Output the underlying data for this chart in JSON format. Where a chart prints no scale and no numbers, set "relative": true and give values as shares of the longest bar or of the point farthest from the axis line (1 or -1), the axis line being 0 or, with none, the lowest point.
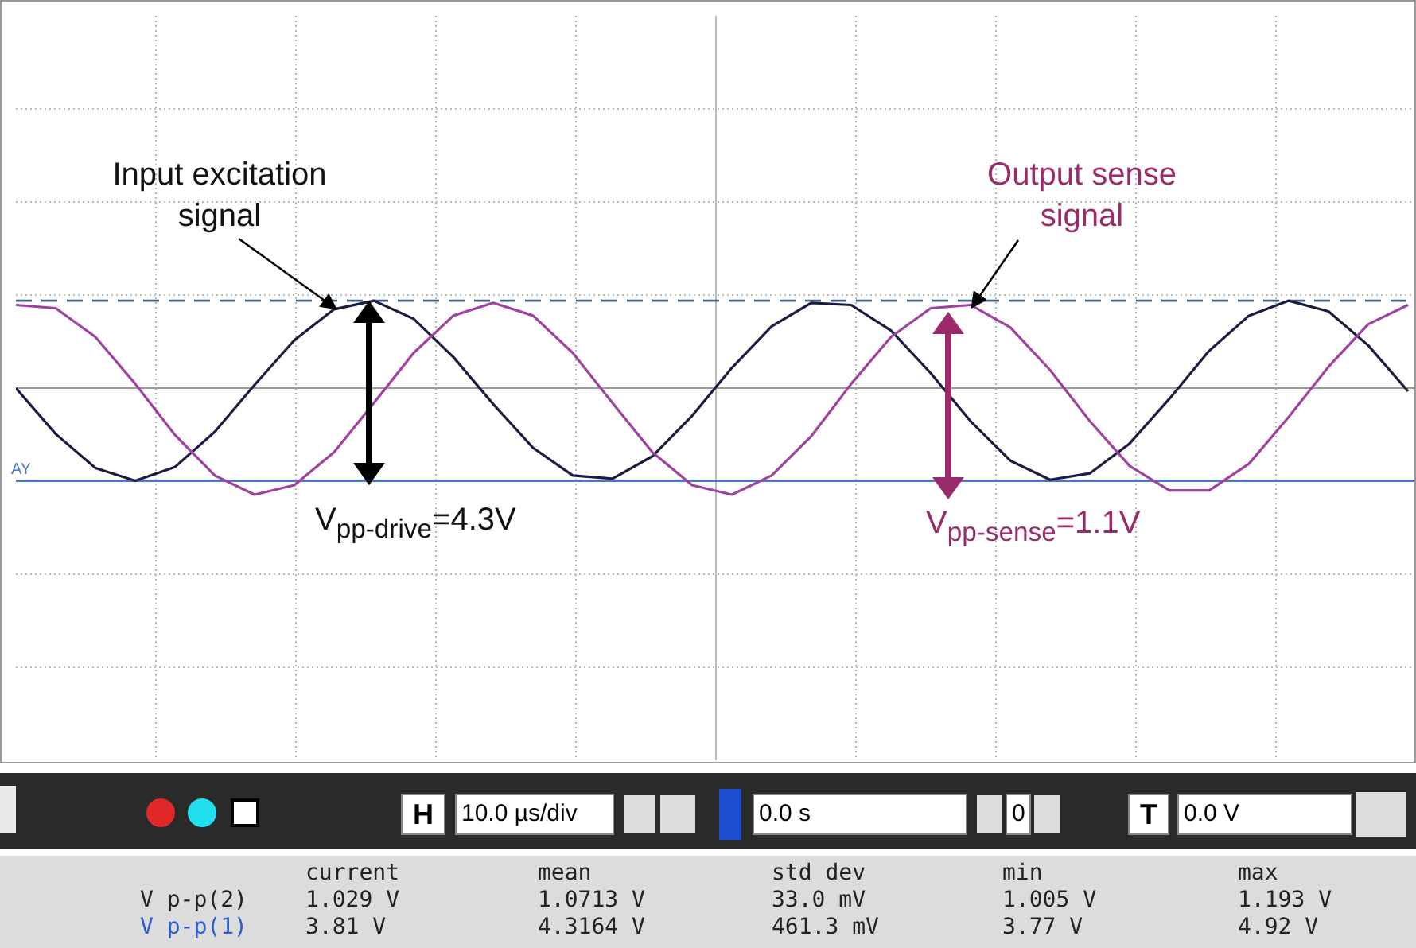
{
  "chart_data": {
    "type": "line",
    "relative": true,
    "categories": [
      null,
      null,
      null,
      null,
      null,
      null,
      null,
      null,
      null,
      null,
      null,
      null,
      null,
      null,
      null,
      null,
      null,
      null,
      null,
      null,
      null,
      null,
      null,
      null,
      null,
      null,
      null,
      null,
      null,
      null,
      null,
      null,
      null,
      null,
      null,
      null
    ],
    "series": [
      {
        "color": "#1c1c40",
        "values": [
          0.0,
          -0.43,
          -0.75,
          -0.87,
          -0.74,
          -0.41,
          0.03,
          0.45,
          0.74,
          0.82,
          0.65,
          0.29,
          -0.15,
          -0.56,
          -0.82,
          -0.85,
          -0.64,
          -0.26,
          0.19,
          0.58,
          0.8,
          0.78,
          0.54,
          0.14,
          -0.31,
          -0.68,
          -0.86,
          -0.8,
          -0.52,
          -0.1,
          0.35,
          0.68,
          0.82,
          0.72,
          0.4,
          -0.03
        ]
      },
      {
        "color": "#a040a0",
        "values": [
          0.78,
          0.75,
          0.48,
          0.04,
          -0.44,
          -0.82,
          -1,
          -0.91,
          -0.6,
          -0.14,
          0.33,
          0.68,
          0.8,
          0.68,
          0.33,
          -0.14,
          -0.6,
          -0.91,
          -1,
          -0.82,
          -0.45,
          0.04,
          0.48,
          0.75,
          0.78,
          0.57,
          0.17,
          -0.31,
          -0.73,
          -0.96,
          -0.96,
          -0.71,
          -0.27,
          0.2,
          0.6,
          0.78
        ]
      }
    ],
    "ref_lines": [
      {
        "axis": "y",
        "value": 0.82,
        "color": "#3a5f80",
        "line_style": "dashed"
      },
      {
        "axis": "y",
        "value": -0.87,
        "label": "AY",
        "color": "#4a78c8",
        "line_style": "solid"
      }
    ],
    "grid": true,
    "legend": false,
    "marker": "none",
    "line_style": "solid",
    "annotations": [
      "Input excitation\nsignal",
      "Output sense\nsignal",
      "V$_{pp-drive}$=4.3V",
      "V$_{pp-sense}$=1.1V",
      "H",
      "10.0 µs/div",
      "0.0 s",
      "0",
      "T",
      "0.0 V",
      "current",
      "mean",
      "std dev",
      "min",
      "max",
      "V p-p(2)",
      "1.029 V",
      "1.0713 V",
      "33.0 mV",
      "1.005 V",
      "1.193 V",
      "V p-p(1)",
      "3.81 V",
      "4.3164 V",
      "461.3 mV",
      "3.77 V",
      "4.92 V"
    ]
  }
}
